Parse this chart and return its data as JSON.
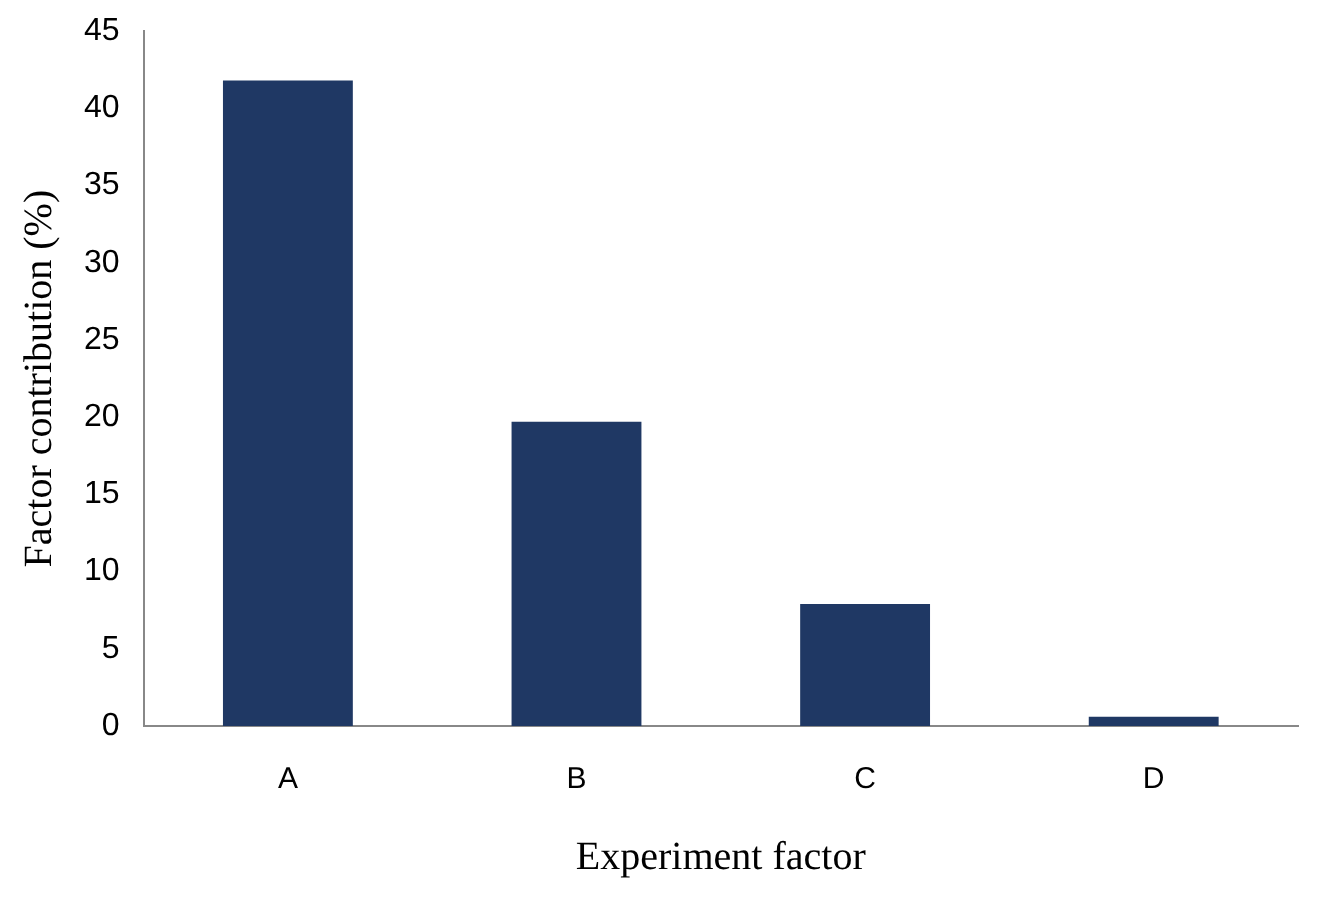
{
  "chart_data": {
    "type": "bar",
    "xlabel": "Experiment factor",
    "ylabel": "Factor contribution (%)",
    "categories": [
      "A",
      "B",
      "C",
      "D"
    ],
    "series": [
      {
        "color": "#1f3864",
        "values": [
          41.8,
          19.7,
          7.9,
          0.6
        ]
      }
    ],
    "ylim": [
      0,
      45
    ],
    "yticks": [
      0,
      5,
      10,
      15,
      20,
      25,
      30,
      35,
      40,
      45
    ],
    "grid": false,
    "legend": false
  }
}
